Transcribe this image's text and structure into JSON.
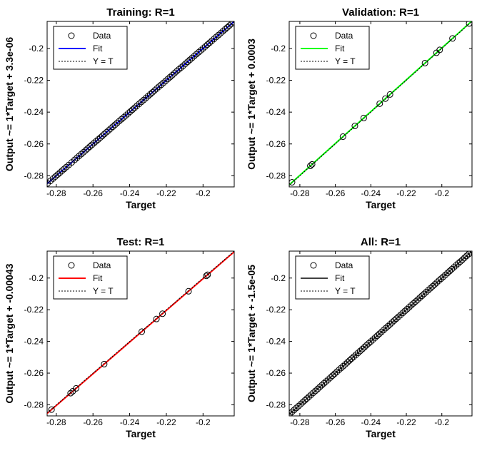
{
  "figure": {
    "legend_labels": {
      "data": "Data",
      "fit": "Fit",
      "yt": "Y = T"
    }
  },
  "chart_data": [
    {
      "type": "scatter",
      "title": "Training: R=1",
      "xlabel": "Target",
      "ylabel": "Output ~= 1*Target + 3.3e-06",
      "xlim": [
        -0.285,
        -0.183
      ],
      "ylim": [
        -0.287,
        -0.183
      ],
      "xticks": [
        -0.28,
        -0.26,
        -0.24,
        -0.22,
        -0.2
      ],
      "xtick_labels": [
        "-0.28",
        "-0.26",
        "-0.24",
        "-0.22",
        "-0.2"
      ],
      "yticks": [
        -0.28,
        -0.26,
        -0.24,
        -0.22,
        -0.2
      ],
      "ytick_labels": [
        "-0.28",
        "-0.26",
        "-0.24",
        "-0.22",
        "-0.2"
      ],
      "fit_color": "#0000ff",
      "fit": {
        "slope": 1,
        "intercept": 3.3e-06
      },
      "legend": "top-left",
      "points": [
        -0.2848,
        -0.2832,
        -0.2818,
        -0.2805,
        -0.2792,
        -0.278,
        -0.2768,
        -0.2757,
        -0.2745,
        -0.2732,
        -0.2716,
        -0.27,
        -0.2688,
        -0.2676,
        -0.2664,
        -0.2652,
        -0.264,
        -0.2629,
        -0.2617,
        -0.2606,
        -0.2595,
        -0.2584,
        -0.2572,
        -0.256,
        -0.2549,
        -0.2538,
        -0.2526,
        -0.2515,
        -0.2504,
        -0.2492,
        -0.248,
        -0.2469,
        -0.2457,
        -0.2445,
        -0.2433,
        -0.2421,
        -0.2409,
        -0.2397,
        -0.2385,
        -0.2373,
        -0.2361,
        -0.2348,
        -0.2336,
        -0.2324,
        -0.2312,
        -0.23,
        -0.2288,
        -0.2276,
        -0.2264,
        -0.2252,
        -0.224,
        -0.2228,
        -0.2216,
        -0.2204,
        -0.2192,
        -0.218,
        -0.2168,
        -0.2156,
        -0.2144,
        -0.2132,
        -0.212,
        -0.2108,
        -0.2096,
        -0.2084,
        -0.2072,
        -0.206,
        -0.2048,
        -0.2036,
        -0.2024,
        -0.2012,
        -0.2,
        -0.1988,
        -0.1976,
        -0.1964,
        -0.1952,
        -0.194,
        -0.1928,
        -0.1916,
        -0.1904,
        -0.1892,
        -0.188,
        -0.1868,
        -0.1856,
        -0.1844,
        -0.1834
      ]
    },
    {
      "type": "scatter",
      "title": "Validation: R=1",
      "xlabel": "Target",
      "ylabel": "Output ~= 1*Target + 0.0003",
      "xlim": [
        -0.286,
        -0.183
      ],
      "ylim": [
        -0.287,
        -0.183
      ],
      "xticks": [
        -0.28,
        -0.26,
        -0.24,
        -0.22,
        -0.2
      ],
      "xtick_labels": [
        "-0.28",
        "-0.26",
        "-0.24",
        "-0.22",
        "-0.2"
      ],
      "yticks": [
        -0.28,
        -0.26,
        -0.24,
        -0.22,
        -0.2
      ],
      "ytick_labels": [
        "-0.28",
        "-0.26",
        "-0.24",
        "-0.22",
        "-0.2"
      ],
      "fit_color": "#00ff00",
      "fit": {
        "slope": 1,
        "intercept": 0.0003
      },
      "legend": "top-left",
      "points": [
        -0.2844,
        -0.2741,
        -0.2731,
        -0.2557,
        -0.249,
        -0.244,
        -0.235,
        -0.2318,
        -0.2292,
        -0.2095,
        -0.203,
        -0.2012,
        -0.194,
        -0.1846
      ]
    },
    {
      "type": "scatter",
      "title": "Test: R=1",
      "xlabel": "Target",
      "ylabel": "Output ~= 1*Target + -0.00043",
      "xlim": [
        -0.285,
        -0.183
      ],
      "ylim": [
        -0.287,
        -0.183
      ],
      "xticks": [
        -0.28,
        -0.26,
        -0.24,
        -0.22,
        -0.2
      ],
      "xtick_labels": [
        "-0.28",
        "-0.26",
        "-0.24",
        "-0.22",
        "-0.2"
      ],
      "yticks": [
        -0.28,
        -0.26,
        -0.24,
        -0.22,
        -0.2
      ],
      "ytick_labels": [
        "-0.28",
        "-0.26",
        "-0.24",
        "-0.22",
        "-0.2"
      ],
      "fit_color": "#ff0000",
      "fit": {
        "slope": 1,
        "intercept": -0.00043
      },
      "legend": "top-left",
      "points": [
        -0.2866,
        -0.2826,
        -0.2722,
        -0.271,
        -0.2692,
        -0.2539,
        -0.2334,
        -0.2254,
        -0.2221,
        -0.2079,
        -0.1982,
        -0.1975
      ]
    },
    {
      "type": "scatter",
      "title": "All: R=1",
      "xlabel": "Target",
      "ylabel": "Output ~= 1*Target + -1.5e-05",
      "xlim": [
        -0.286,
        -0.183
      ],
      "ylim": [
        -0.287,
        -0.183
      ],
      "xticks": [
        -0.28,
        -0.26,
        -0.24,
        -0.22,
        -0.2
      ],
      "xtick_labels": [
        "-0.28",
        "-0.26",
        "-0.24",
        "-0.22",
        "-0.2"
      ],
      "yticks": [
        -0.28,
        -0.26,
        -0.24,
        -0.22,
        -0.2
      ],
      "ytick_labels": [
        "-0.28",
        "-0.26",
        "-0.24",
        "-0.22",
        "-0.2"
      ],
      "fit_color": "#404040",
      "fit": {
        "slope": 1,
        "intercept": -1.5e-05
      },
      "legend": "top-left",
      "points": [
        -0.2866,
        -0.2856,
        -0.2844,
        -0.2832,
        -0.282,
        -0.2808,
        -0.2796,
        -0.2784,
        -0.2772,
        -0.276,
        -0.2748,
        -0.2736,
        -0.2724,
        -0.2712,
        -0.27,
        -0.2688,
        -0.2676,
        -0.2664,
        -0.2652,
        -0.264,
        -0.2628,
        -0.2616,
        -0.2604,
        -0.2592,
        -0.258,
        -0.2568,
        -0.2556,
        -0.2544,
        -0.2532,
        -0.252,
        -0.2508,
        -0.2496,
        -0.2484,
        -0.2472,
        -0.246,
        -0.2448,
        -0.2436,
        -0.2424,
        -0.2412,
        -0.24,
        -0.2388,
        -0.2376,
        -0.2364,
        -0.2352,
        -0.234,
        -0.2328,
        -0.2316,
        -0.2304,
        -0.2292,
        -0.228,
        -0.2268,
        -0.2256,
        -0.2244,
        -0.2232,
        -0.222,
        -0.2208,
        -0.2196,
        -0.2184,
        -0.2172,
        -0.216,
        -0.2148,
        -0.2136,
        -0.2124,
        -0.2112,
        -0.21,
        -0.2088,
        -0.2076,
        -0.2064,
        -0.2052,
        -0.204,
        -0.2028,
        -0.2016,
        -0.2004,
        -0.1992,
        -0.198,
        -0.1968,
        -0.1956,
        -0.1944,
        -0.1932,
        -0.192,
        -0.1908,
        -0.1896,
        -0.1884,
        -0.1872,
        -0.186,
        -0.1848,
        -0.1836
      ]
    }
  ]
}
